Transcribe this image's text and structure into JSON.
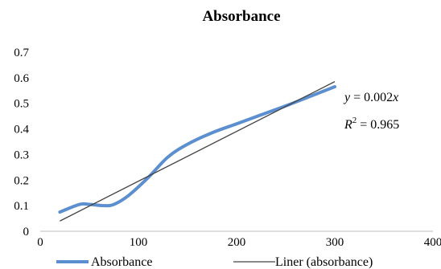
{
  "chart_data": {
    "type": "line",
    "title": "Absorbance",
    "xlabel": "",
    "ylabel": "",
    "xlim": [
      0,
      400
    ],
    "ylim": [
      0,
      0.7
    ],
    "x_ticks": [
      "0",
      "100",
      "200",
      "300",
      "400"
    ],
    "y_ticks": [
      "0",
      "0.1",
      "0.2",
      "0.3",
      "0.4",
      "0.5",
      "0.6",
      "0.7"
    ],
    "grid": false,
    "legend_position": "bottom",
    "series": [
      {
        "name": "Absorbance",
        "color": "#5b8fd0",
        "smooth": true,
        "x": [
          20,
          40,
          50,
          65,
          75,
          90,
          110,
          130,
          150,
          175,
          200,
          225,
          250,
          270,
          300
        ],
        "y": [
          0.075,
          0.105,
          0.105,
          0.1,
          0.105,
          0.14,
          0.21,
          0.29,
          0.34,
          0.385,
          0.42,
          0.455,
          0.49,
          0.52,
          0.565
        ]
      },
      {
        "name": "Liner (absorbance)",
        "color": "#444444",
        "type": "trendline",
        "x": [
          20,
          300
        ],
        "y": [
          0.04,
          0.585
        ]
      }
    ],
    "annotations": {
      "equation_lhs": "y",
      "equation_rhs": " = 0.002",
      "equation_var": "x",
      "r2_label": "R",
      "r2_sup": "2",
      "r2_value": " = 0.965"
    }
  }
}
